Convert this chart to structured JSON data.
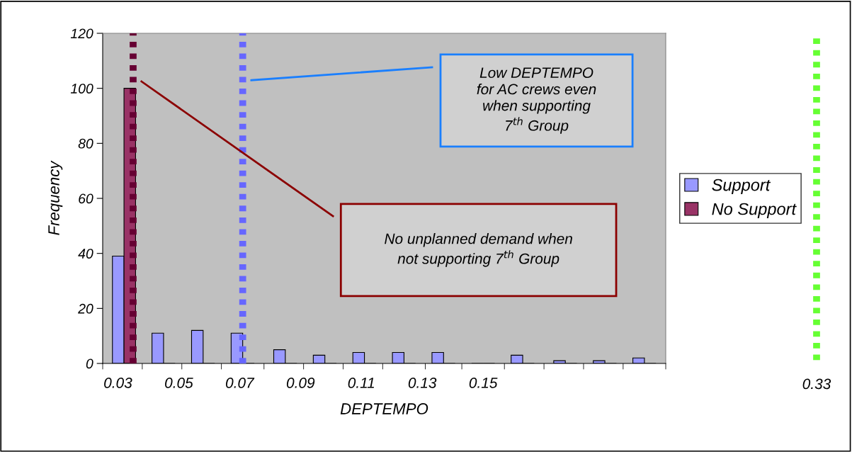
{
  "chart_data": {
    "type": "bar",
    "xlabel": "DEPTEMPO",
    "ylabel": "Frequency",
    "x": [
      0.032,
      0.045,
      0.058,
      0.071,
      0.085,
      0.098,
      0.111,
      0.124,
      0.137,
      0.15,
      0.163,
      0.177,
      0.19,
      0.203
    ],
    "series": [
      {
        "name": "Support",
        "color": "#9999ff",
        "values": [
          39,
          11,
          12,
          11,
          5,
          3,
          4,
          4,
          4,
          0,
          3,
          1,
          1,
          2
        ]
      },
      {
        "name": "No Support",
        "color": "#993366",
        "values": [
          100,
          0,
          0,
          0,
          0,
          0,
          0,
          0,
          0,
          0,
          0,
          0,
          0,
          0
        ]
      }
    ],
    "xlim": [
      0.025,
      0.21
    ],
    "xticks": [
      {
        "value": 0.03,
        "label": "0.03"
      },
      {
        "value": 0.05,
        "label": "0.05"
      },
      {
        "value": 0.07,
        "label": "0.07"
      },
      {
        "value": 0.09,
        "label": "0.09"
      },
      {
        "value": 0.11,
        "label": "0.11"
      },
      {
        "value": 0.13,
        "label": "0.13"
      },
      {
        "value": 0.15,
        "label": "0.15"
      },
      {
        "value": 0.025,
        "label": null
      },
      {
        "value": 0.038,
        "label": null
      },
      {
        "value": 0.051,
        "label": null
      },
      {
        "value": 0.064,
        "label": null
      },
      {
        "value": 0.078,
        "label": null
      },
      {
        "value": 0.091,
        "label": null
      },
      {
        "value": 0.104,
        "label": null
      },
      {
        "value": 0.117,
        "label": null
      },
      {
        "value": 0.131,
        "label": null
      },
      {
        "value": 0.143,
        "label": null
      },
      {
        "value": 0.157,
        "label": null
      },
      {
        "value": 0.17,
        "label": null
      },
      {
        "value": 0.183,
        "label": null
      },
      {
        "value": 0.196,
        "label": null
      },
      {
        "value": 0.21,
        "label": null
      }
    ],
    "ylim": [
      0,
      120
    ],
    "yticks": [
      0,
      20,
      40,
      60,
      80,
      100,
      120
    ],
    "ref_lines": [
      {
        "axis": "x",
        "value": 0.035,
        "color": "#660033",
        "line_style": "dotted"
      },
      {
        "axis": "x",
        "value": 0.071,
        "color": "#6666ff",
        "line_style": "dotted"
      }
    ],
    "annotations": [
      "Low DEPTEMPO\nfor AC crews even\nwhen supporting\n7$^{th}$ Group",
      "No unplanned demand when\nnot supporting 7$^{th}$ Group",
      "0.33"
    ],
    "grid": false,
    "legend": "right"
  }
}
